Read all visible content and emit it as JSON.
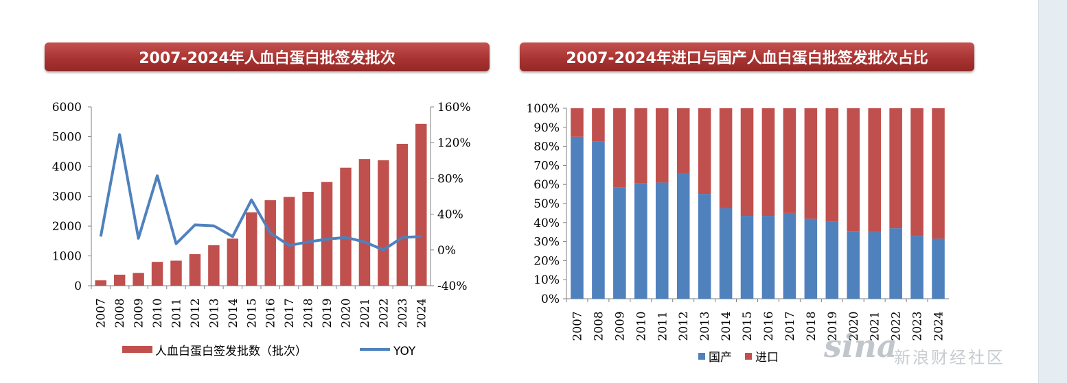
{
  "colors": {
    "bar_red": "#c0504d",
    "line_blue": "#4f81bd",
    "domestic_blue": "#4f81bd",
    "import_red": "#c0504d",
    "title_bar": "#a93432"
  },
  "chart_data": [
    {
      "type": "bar",
      "title": "2007-2024年人血白蛋白批签发批次",
      "categories": [
        "2007",
        "2008",
        "2009",
        "2010",
        "2011",
        "2012",
        "2013",
        "2014",
        "2015",
        "2016",
        "2017",
        "2018",
        "2019",
        "2020",
        "2021",
        "2022",
        "2023",
        "2024"
      ],
      "series": [
        {
          "name": "人血白蛋白签发批数（批次）",
          "type": "bar",
          "axis": "left",
          "values": [
            180,
            370,
            430,
            800,
            840,
            1060,
            1360,
            1580,
            2460,
            2870,
            2980,
            3150,
            3480,
            3960,
            4250,
            4210,
            4760,
            5430
          ]
        },
        {
          "name": "YOY",
          "type": "line",
          "axis": "right",
          "values": [
            15,
            129,
            13,
            83,
            7,
            28,
            27,
            15,
            56,
            19,
            5,
            9,
            12,
            14,
            9,
            0,
            14,
            15
          ]
        }
      ],
      "y_left": {
        "ylim": [
          0,
          6000
        ],
        "ticks": [
          "0",
          "1000",
          "2000",
          "3000",
          "4000",
          "5000",
          "6000"
        ]
      },
      "y_right": {
        "ylim": [
          -40,
          160
        ],
        "ticks": [
          "-40%",
          "0%",
          "40%",
          "80%",
          "120%",
          "160%"
        ]
      },
      "legend_position": "bottom"
    },
    {
      "type": "bar",
      "stacked": true,
      "title": "2007-2024年进口与国产人血白蛋白批签发批次占比",
      "categories": [
        "2007",
        "2008",
        "2009",
        "2010",
        "2011",
        "2012",
        "2013",
        "2014",
        "2015",
        "2016",
        "2017",
        "2018",
        "2019",
        "2020",
        "2021",
        "2022",
        "2023",
        "2024"
      ],
      "series": [
        {
          "name": "国产",
          "values": [
            85,
            82.5,
            58.5,
            60.5,
            61,
            65.5,
            55,
            47.5,
            43.5,
            43.5,
            45,
            42,
            40.5,
            35.5,
            35,
            37,
            33,
            31.5
          ]
        },
        {
          "name": "进口",
          "values": [
            15,
            17.5,
            41.5,
            39.5,
            39,
            34.5,
            45,
            52.5,
            56.5,
            56.5,
            55,
            58,
            59.5,
            64.5,
            65,
            63,
            67,
            68.5
          ]
        }
      ],
      "ylim": [
        0,
        100
      ],
      "y_ticks": [
        "0%",
        "10%",
        "20%",
        "30%",
        "40%",
        "50%",
        "60%",
        "70%",
        "80%",
        "90%",
        "100%"
      ],
      "legend_position": "bottom"
    }
  ],
  "watermark": {
    "logo": "sina",
    "text": "新浪财经社区"
  }
}
